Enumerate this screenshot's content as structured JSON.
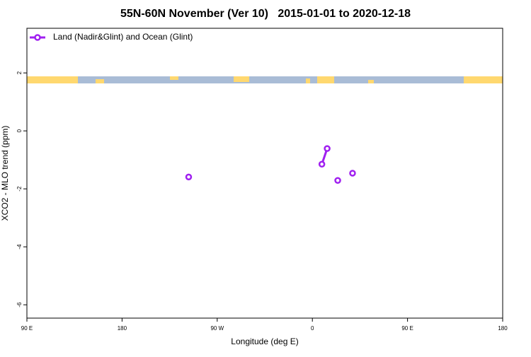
{
  "chart_data": {
    "type": "line",
    "title": "55N-60N November (Ver 10)   2015-01-01 to 2020-12-18",
    "x_label": "Longitude (deg E)",
    "y_label": "XCO2 - MLO trend (ppm)",
    "x": [
      243,
      null,
      369,
      374,
      null,
      384,
      null,
      398
    ],
    "series": [
      {
        "name": "Land (Nadir&Glint) and Ocean (Glint)",
        "color": "#a020f0",
        "values": [
          -1.59,
          null,
          -1.15,
          -0.61,
          null,
          -1.71,
          null,
          -1.46
        ]
      }
    ],
    "xlim": [
      90,
      540
    ],
    "xticks": [
      {
        "value": 90,
        "label": "90 E"
      },
      {
        "value": 180,
        "label": "180"
      },
      {
        "value": 270,
        "label": "90 W"
      },
      {
        "value": 360,
        "label": "0"
      },
      {
        "value": 450,
        "label": "90 E"
      },
      {
        "value": 540,
        "label": "180"
      }
    ],
    "ylim": [
      -6.46,
      3.54
    ],
    "yticks": [
      2,
      0,
      -2,
      -4,
      -6
    ],
    "legend": "top-left"
  }
}
